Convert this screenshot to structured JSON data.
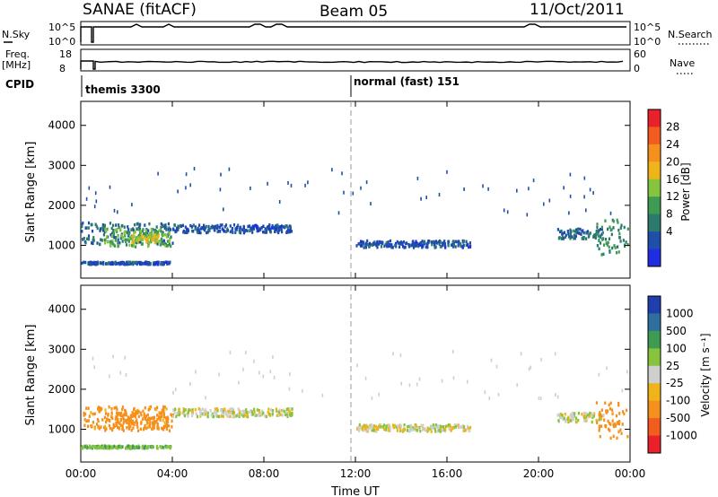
{
  "header": {
    "station": "SANAE (fitACF)",
    "beam": "Beam 05",
    "date": "11/Oct/2011"
  },
  "top_panels": {
    "nsky_label": "N.Sky",
    "nsky_ticks": [
      "10^5",
      "10^0"
    ],
    "nsearch_label": "N.Search",
    "nsearch_ticks": [
      "10^5",
      "10^0"
    ],
    "freq_label": "Freq.",
    "freq_unit": "[MHz]",
    "freq_ticks": [
      "18",
      "8"
    ],
    "nave_label": "Nave",
    "nave_ticks": [
      "60",
      "0"
    ],
    "cpid_label": "CPID",
    "cpid_segments": [
      {
        "label": "themis 3300",
        "start_hour": 0.0
      },
      {
        "label": "normal (fast) 151",
        "start_hour": 12.0
      }
    ]
  },
  "axes": {
    "x_label": "Time UT",
    "x_ticks": [
      "00:00",
      "04:00",
      "08:00",
      "12:00",
      "16:00",
      "20:00",
      "00:00"
    ],
    "x_range_hours": [
      0,
      24
    ],
    "y_label": "Slant Range [km]",
    "y_ticks": [
      "4000",
      "3000",
      "2000",
      "1000"
    ],
    "y_range_km": [
      180,
      4600
    ]
  },
  "colorbars": {
    "power": {
      "label": "Power [dB]",
      "ticks": [
        "28",
        "24",
        "20",
        "16",
        "12",
        "8",
        "4"
      ],
      "colors": [
        "#e8212a",
        "#f25c1e",
        "#f5901c",
        "#f0b41b",
        "#86c43e",
        "#3f9a52",
        "#2c7a6e",
        "#1f4fa8",
        "#1f2ee0"
      ]
    },
    "velocity": {
      "label": "Velocity [m s⁻¹]",
      "ticks": [
        "1000",
        "500",
        "100",
        "25",
        "-25",
        "-100",
        "-500",
        "-1000"
      ],
      "colors": [
        "#1f3fae",
        "#2f6fa0",
        "#3f9a52",
        "#86c43e",
        "#cfcfcf",
        "#f0b41b",
        "#f5901c",
        "#f25c1e",
        "#e8212a"
      ]
    }
  },
  "chart_data": [
    {
      "type": "heatmap",
      "title": "Power [dB]",
      "x": "time_hours",
      "xlabel": "Time UT",
      "ylabel": "Slant Range [km]",
      "ylim": [
        180,
        4600
      ],
      "xlim": [
        0,
        24
      ],
      "regions": [
        {
          "t0": 0.0,
          "t1": 4.0,
          "r0": 1050,
          "r1": 1600,
          "value_db": 8
        },
        {
          "t0": 1.0,
          "t1": 3.9,
          "r0": 1000,
          "r1": 1450,
          "value_db": 16
        },
        {
          "t0": 2.2,
          "t1": 3.4,
          "r0": 1100,
          "r1": 1300,
          "value_db": 20
        },
        {
          "t0": 4.0,
          "t1": 9.2,
          "r0": 1350,
          "r1": 1550,
          "value_db": 6
        },
        {
          "t0": 0.0,
          "t1": 3.9,
          "r0": 560,
          "r1": 620,
          "value_db": 6
        },
        {
          "t0": 12.0,
          "t1": 17.0,
          "r0": 980,
          "r1": 1150,
          "value_db": 6
        },
        {
          "t0": 20.8,
          "t1": 22.8,
          "r0": 1200,
          "r1": 1450,
          "value_db": 8
        },
        {
          "t0": 22.5,
          "t1": 23.9,
          "r0": 800,
          "r1": 1700,
          "value_db": 12
        }
      ]
    },
    {
      "type": "heatmap",
      "title": "Velocity [m s-1]",
      "x": "time_hours",
      "xlabel": "Time UT",
      "ylabel": "Slant Range [km]",
      "ylim": [
        180,
        4600
      ],
      "xlim": [
        0,
        24
      ],
      "regions": [
        {
          "t0": 0.0,
          "t1": 4.0,
          "r0": 1050,
          "r1": 1600,
          "value_ms": -150
        },
        {
          "t0": 1.0,
          "t1": 3.9,
          "r0": 1000,
          "r1": 1450,
          "value_ms": -300
        },
        {
          "t0": 4.0,
          "t1": 9.2,
          "r0": 1350,
          "r1": 1550,
          "value_ms": 0
        },
        {
          "t0": 0.0,
          "t1": 3.9,
          "r0": 560,
          "r1": 620,
          "value_ms": 80
        },
        {
          "t0": 12.0,
          "t1": 17.0,
          "r0": 980,
          "r1": 1150,
          "value_ms": 0
        },
        {
          "t0": 20.8,
          "t1": 22.8,
          "r0": 1200,
          "r1": 1450,
          "value_ms": 0
        },
        {
          "t0": 22.5,
          "t1": 23.9,
          "r0": 800,
          "r1": 1700,
          "value_ms": -300
        }
      ]
    }
  ]
}
